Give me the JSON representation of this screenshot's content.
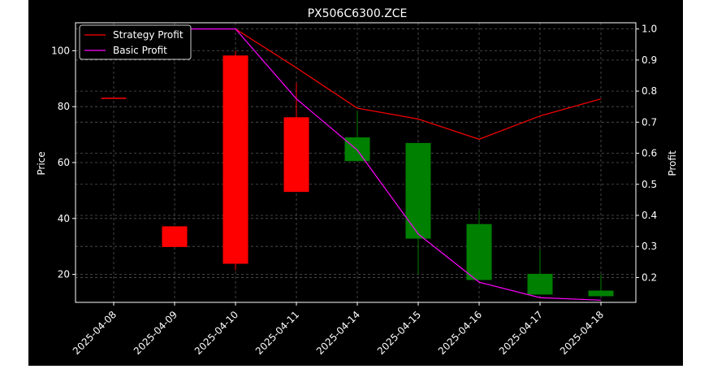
{
  "chart_data": {
    "type": "candlestick",
    "title": "PX506C6300.ZCE",
    "xlabel": "",
    "ylabel_left": "Price",
    "ylabel_right": "Profit",
    "categories": [
      "2025-04-08",
      "2025-04-09",
      "2025-04-10",
      "2025-04-11",
      "2025-04-14",
      "2025-04-15",
      "2025-04-16",
      "2025-04-17",
      "2025-04-18"
    ],
    "ylim_left": [
      10,
      110
    ],
    "yticks_left": [
      20,
      40,
      60,
      80,
      100
    ],
    "ylim_right": [
      0.12,
      1.02
    ],
    "yticks_right": [
      "0.2",
      "0.3",
      "0.4",
      "0.5",
      "0.6",
      "0.7",
      "0.8",
      "0.9",
      "1.0"
    ],
    "candles": [
      {
        "date": "2025-04-08",
        "open": 83.2,
        "high": 83.2,
        "low": 83.2,
        "close": 83.2,
        "direction": "up"
      },
      {
        "date": "2025-04-09",
        "open": 29.8,
        "high": 37.2,
        "low": 29.8,
        "close": 37.2,
        "direction": "up"
      },
      {
        "date": "2025-04-10",
        "open": 23.8,
        "high": 100.0,
        "low": 21.5,
        "close": 98.3,
        "direction": "up"
      },
      {
        "date": "2025-04-11",
        "open": 49.5,
        "high": 88.5,
        "low": 49.5,
        "close": 76.2,
        "direction": "up"
      },
      {
        "date": "2025-04-14",
        "open": 69.0,
        "high": 78.5,
        "low": 60.5,
        "close": 60.5,
        "direction": "down"
      },
      {
        "date": "2025-04-15",
        "open": 67.0,
        "high": 67.0,
        "low": 20.0,
        "close": 32.8,
        "direction": "down"
      },
      {
        "date": "2025-04-16",
        "open": 38.0,
        "high": 43.0,
        "low": 18.0,
        "close": 18.0,
        "direction": "down"
      },
      {
        "date": "2025-04-17",
        "open": 20.2,
        "high": 28.8,
        "low": 12.8,
        "close": 12.8,
        "direction": "down"
      },
      {
        "date": "2025-04-18",
        "open": 14.2,
        "high": 20.0,
        "low": 12.2,
        "close": 12.2,
        "direction": "down"
      }
    ],
    "series": [
      {
        "name": "Strategy Profit",
        "color": "#ff0000",
        "axis": "right",
        "values": [
          null,
          null,
          1.0,
          0.875,
          0.745,
          0.71,
          0.645,
          0.72,
          0.775
        ]
      },
      {
        "name": "Basic Profit",
        "color": "#ff00ff",
        "axis": "right",
        "values": [
          null,
          1.0,
          1.0,
          0.775,
          0.61,
          0.34,
          0.185,
          0.135,
          0.127
        ]
      }
    ],
    "colors": {
      "up": "#ff0000",
      "down": "#008000",
      "background": "#000000",
      "foreground": "#ffffff",
      "grid": "#555555"
    },
    "grid": true,
    "legend_position": "top-left"
  }
}
